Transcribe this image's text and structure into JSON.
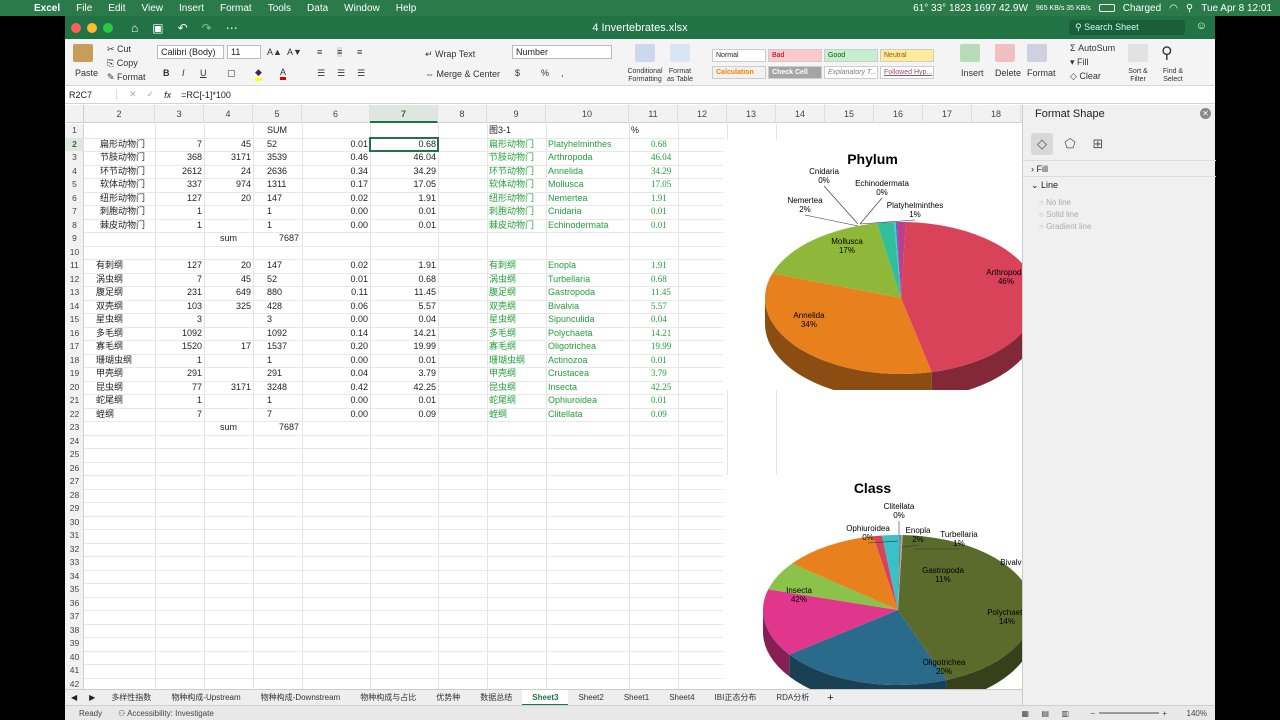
{
  "menubar": {
    "app": "Excel",
    "items": [
      "File",
      "Edit",
      "View",
      "Insert",
      "Format",
      "Tools",
      "Data",
      "Window",
      "Help"
    ],
    "weather": "61° 33° 1823 1697 42.9W",
    "netstats": "965 KB/s 35 KB/s",
    "battery": "Charged",
    "clock": "Tue Apr 8  12:01"
  },
  "window": {
    "title": "4 Invertebrates.xlsx",
    "search_placeholder": "Search Sheet"
  },
  "ribbon": {
    "paste": "Paste",
    "cut": "Cut",
    "copy": "Copy",
    "format": "Format",
    "font_name": "Calibri (Body)",
    "font_size": "11",
    "wrap_text": "Wrap Text",
    "merge_center": "Merge & Center",
    "number_format": "Number",
    "conditional": "Conditional Formatting",
    "format_table": "Format as Table",
    "styles": [
      "Normal",
      "Bad",
      "Good",
      "Neutral",
      "Calculation",
      "Check Cell",
      "Explanatory T...",
      "Followed Hyp..."
    ],
    "insert": "Insert",
    "delete": "Delete",
    "format_cells": "Format",
    "autosum": "AutoSum",
    "fill": "Fill",
    "clear": "Clear",
    "sort_filter": "Sort & Filter",
    "find_select": "Find & Select"
  },
  "formula_bar": {
    "name_box": "R2C7",
    "fx": "fx",
    "formula": "=RC[-1]*100"
  },
  "columns": [
    "2",
    "3",
    "4",
    "5",
    "6",
    "7",
    "8",
    "9",
    "10",
    "11",
    "12",
    "13",
    "14",
    "15",
    "16",
    "17",
    "18"
  ],
  "rows": [
    "1",
    "2",
    "3",
    "4",
    "5",
    "6",
    "7",
    "8",
    "9",
    "10",
    "11",
    "12",
    "13",
    "14",
    "15",
    "16",
    "17",
    "18",
    "19",
    "20",
    "21",
    "22",
    "23",
    "24",
    "25",
    "26",
    "27",
    "28",
    "29",
    "30",
    "31",
    "32",
    "33",
    "34",
    "35",
    "36",
    "37",
    "38",
    "39",
    "40",
    "41",
    "42"
  ],
  "table1": {
    "header_sum": "SUM",
    "fig_label": "图3-1",
    "pct_label": "%",
    "rows": [
      [
        "扁形动物门",
        "7",
        "45",
        "52",
        "0.01",
        "0.68",
        "扁形动物门",
        "Platyhelminthes",
        "0.68"
      ],
      [
        "节肢动物门",
        "368",
        "3171",
        "3539",
        "0.46",
        "46.04",
        "节肢动物门",
        "Arthropoda",
        "46.04"
      ],
      [
        "环节动物门",
        "2612",
        "24",
        "2636",
        "0.34",
        "34.29",
        "环节动物门",
        "Annelida",
        "34.29"
      ],
      [
        "软体动物门",
        "337",
        "974",
        "1311",
        "0.17",
        "17.05",
        "软体动物门",
        "Mollusca",
        "17.05"
      ],
      [
        "纽形动物门",
        "127",
        "20",
        "147",
        "0.02",
        "1.91",
        "纽形动物门",
        "Nemertea",
        "1.91"
      ],
      [
        "刺胞动物门",
        "1",
        "",
        "1",
        "0.00",
        "0.01",
        "刺胞动物门",
        "Cnidaria",
        "0.01"
      ],
      [
        "棘皮动物门",
        "1",
        "",
        "1",
        "0.00",
        "0.01",
        "棘皮动物门",
        "Echinodermata",
        "0.01"
      ]
    ],
    "sum_label": "sum",
    "sum_value": "7687"
  },
  "table2": {
    "rows": [
      [
        "有刺纲",
        "127",
        "20",
        "147",
        "0.02",
        "1.91",
        "有刺纲",
        "Enopla",
        "1.91"
      ],
      [
        "涡虫纲",
        "7",
        "45",
        "52",
        "0.01",
        "0.68",
        "涡虫纲",
        "Turbellaria",
        "0.68"
      ],
      [
        "腹足纲",
        "231",
        "649",
        "880",
        "0.11",
        "11.45",
        "腹足纲",
        "Gastropoda",
        "11.45"
      ],
      [
        "双壳纲",
        "103",
        "325",
        "428",
        "0.06",
        "5.57",
        "双壳纲",
        "Bivalvia",
        "5.57"
      ],
      [
        "星虫纲",
        "3",
        "",
        "3",
        "0.00",
        "0.04",
        "星虫纲",
        "Sipunculida",
        "0.04"
      ],
      [
        "多毛纲",
        "1092",
        "",
        "1092",
        "0.14",
        "14.21",
        "多毛纲",
        "Polychaeta",
        "14.21"
      ],
      [
        "寡毛纲",
        "1520",
        "17",
        "1537",
        "0.20",
        "19.99",
        "寡毛纲",
        "Oligotrichea",
        "19.99"
      ],
      [
        "珊瑚虫纲",
        "1",
        "",
        "1",
        "0.00",
        "0.01",
        "珊瑚虫纲",
        "Actinozoa",
        "0.01"
      ],
      [
        "甲壳纲",
        "291",
        "",
        "291",
        "0.04",
        "3.79",
        "甲壳纲",
        "Crustacea",
        "3.79"
      ],
      [
        "昆虫纲",
        "77",
        "3171",
        "3248",
        "0.42",
        "42.25",
        "昆虫纲",
        "Insecta",
        "42.25"
      ],
      [
        "蛇尾纲",
        "1",
        "",
        "1",
        "0.00",
        "0.01",
        "蛇尾纲",
        "Ophiuroidea",
        "0.01"
      ],
      [
        "蛭纲",
        "7",
        "",
        "7",
        "0.00",
        "0.09",
        "蛭纲",
        "Clitellata",
        "0.09"
      ]
    ],
    "sum_label": "sum",
    "sum_value": "7687"
  },
  "chart_data": [
    {
      "type": "pie",
      "title": "Phylum",
      "categories": [
        "Arthropoda",
        "Annelida",
        "Mollusca",
        "Nemertea",
        "Cnidaria",
        "Echinodermata",
        "Platyhelminthes"
      ],
      "values": [
        46,
        34,
        17,
        2,
        0,
        0,
        1
      ],
      "labels": [
        "Arthropoda 46%",
        "Annelida 34%",
        "Mollusca 17%",
        "Nemertea 2%",
        "Cnidaria 0%",
        "Echinodermata 0%",
        "Platyhelminthes 1%"
      ],
      "colors": [
        "#d9435a",
        "#e8801e",
        "#8fb83a",
        "#2fbf9a",
        "#55c0e0",
        "#3a70c8",
        "#c03c8c"
      ]
    },
    {
      "type": "pie",
      "title": "Class",
      "categories": [
        "Insecta",
        "Oligotrichea",
        "Polychaeta",
        "Bivalvia",
        "Gastropoda",
        "Turbellaria",
        "Enopla",
        "Clitellata",
        "Ophiuroidea"
      ],
      "values": [
        42,
        20,
        14,
        6,
        11,
        1,
        2,
        0,
        0
      ],
      "labels": [
        "Insecta 42%",
        "Oligotrichea 20%",
        "Polychaeta 14%",
        "Bivalvia",
        "Gastropoda 11%",
        "Turbellaria 1%",
        "Enopla 2%",
        "Clitellata 0%",
        "Ophiuroidea 0%"
      ],
      "colors": [
        "#5a6b2c",
        "#2a6a8a",
        "#e0368c",
        "#8bc34a",
        "#e8801e",
        "#d9435a",
        "#39c0c8",
        "#777777",
        "#aaaaaa"
      ]
    }
  ],
  "format_panel": {
    "title": "Format Shape",
    "fill": "Fill",
    "line": "Line",
    "line_options": [
      "No line",
      "Solid line",
      "Gradient line"
    ]
  },
  "sheet_tabs": [
    "多样性指数",
    "物种构成-Upstream",
    "物种构成-Downstream",
    "物种构成与占比",
    "优势种",
    "数据总结",
    "Sheet3",
    "Sheet2",
    "Sheet1",
    "Sheet4",
    "IBI正态分布",
    "RDA分析"
  ],
  "active_sheet": "Sheet3",
  "status": {
    "ready": "Ready",
    "accessibility": "Accessibility: Investigate",
    "zoom": "140%"
  }
}
